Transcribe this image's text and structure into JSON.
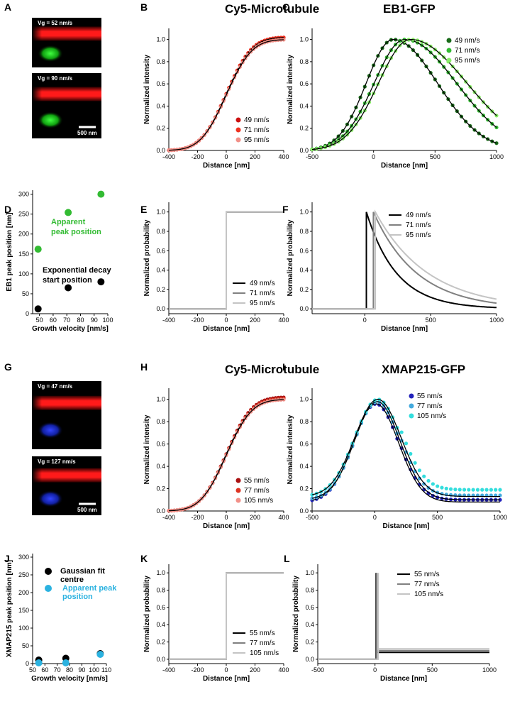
{
  "panels": [
    {
      "id": "A",
      "type": "image",
      "letter": "A",
      "images": [
        {
          "label": "Vg = 52 nm/s",
          "spot": "#22dd22"
        },
        {
          "label": "Vg = 90 nm/s",
          "spot": "#22dd22"
        }
      ],
      "scalebar": "500 nm"
    },
    {
      "id": "B",
      "type": "line",
      "letter": "B",
      "title": "Cy5-Microtubule",
      "xlabel": "Distance [nm]",
      "ylabel": "Normalized intensity",
      "xlim": [
        -400,
        400
      ],
      "ylim": [
        0,
        1.1
      ],
      "xticks": [
        -400,
        -200,
        0,
        200,
        400
      ],
      "yticks": [
        0,
        0.2,
        0.4,
        0.6,
        0.8,
        1.0
      ],
      "legend_pos": "bottom-right",
      "series": [
        {
          "name": "49 nm/s",
          "color": "#cc1111",
          "kind": "sigmoid",
          "sigma": 140,
          "amp": 1.02,
          "shift": 0
        },
        {
          "name": "71 nm/s",
          "color": "#ee3322",
          "kind": "sigmoid",
          "sigma": 140,
          "amp": 1.02,
          "shift": 0
        },
        {
          "name": "95 nm/s",
          "color": "#f29088",
          "kind": "sigmoid",
          "sigma": 140,
          "amp": 1.0,
          "shift": 0
        }
      ]
    },
    {
      "id": "C",
      "type": "line",
      "letter": "C",
      "title": "EB1-GFP",
      "xlabel": "Distance [nm]",
      "ylabel": "Normalized intensity",
      "xlim": [
        -500,
        1000
      ],
      "ylim": [
        0,
        1.1
      ],
      "xticks": [
        -500,
        0,
        500,
        1000
      ],
      "yticks": [
        0,
        0.2,
        0.4,
        0.6,
        0.8,
        1.0
      ],
      "legend_pos": "top-right",
      "series": [
        {
          "name": "49 nm/s",
          "color": "#1a6b1a",
          "kind": "skewpeak",
          "peak": 160,
          "sl": 220,
          "sr": 360
        },
        {
          "name": "71 nm/s",
          "color": "#33bb33",
          "kind": "skewpeak",
          "peak": 255,
          "sl": 250,
          "sr": 420
        },
        {
          "name": "95 nm/s",
          "color": "#88ee66",
          "kind": "skewpeak",
          "peak": 300,
          "sl": 260,
          "sr": 460
        }
      ]
    },
    {
      "id": "D",
      "type": "scatter",
      "letter": "D",
      "xlabel": "Growth velocity [nm/s]",
      "ylabel": "EB1 peak position [nm]",
      "xlim": [
        45,
        100
      ],
      "ylim": [
        0,
        310
      ],
      "xticks": [
        50,
        60,
        70,
        80,
        90,
        100
      ],
      "yticks": [
        0,
        50,
        100,
        150,
        200,
        250,
        300
      ],
      "series": [
        {
          "name": "Apparent peak position",
          "color": "#33bb33",
          "x": [
            49,
            71,
            95
          ],
          "y": [
            162,
            254,
            300
          ]
        },
        {
          "name": "Exponential decay start position",
          "color": "#000000",
          "x": [
            49,
            71,
            95
          ],
          "y": [
            12,
            65,
            80
          ]
        }
      ],
      "annotations": [
        {
          "text": "Apparent",
          "color": "#33bb33"
        },
        {
          "text": "peak position",
          "color": "#33bb33"
        },
        {
          "text": "Exponential decay",
          "color": "#000000"
        },
        {
          "text": "start position",
          "color": "#000000"
        }
      ]
    },
    {
      "id": "E",
      "type": "line",
      "letter": "E",
      "xlabel": "Distance [nm]",
      "ylabel": "Normalized probability",
      "xlim": [
        -400,
        400
      ],
      "ylim": [
        -0.05,
        1.1
      ],
      "xticks": [
        -400,
        -200,
        0,
        200,
        400
      ],
      "yticks": [
        0,
        0.2,
        0.4,
        0.6,
        0.8,
        1.0
      ],
      "legend_pos": "bottom-right",
      "series": [
        {
          "name": "49 nm/s",
          "color": "#000000",
          "kind": "step",
          "at": 0
        },
        {
          "name": "71 nm/s",
          "color": "#808080",
          "kind": "step",
          "at": 0
        },
        {
          "name": "95 nm/s",
          "color": "#c4c4c4",
          "kind": "step",
          "at": 0
        }
      ]
    },
    {
      "id": "F",
      "type": "line",
      "letter": "F",
      "xlabel": "Distance [nm]",
      "ylabel": "Normalized probability",
      "xlim": [
        -400,
        1000
      ],
      "ylim": [
        -0.05,
        1.1
      ],
      "xticks": [
        0,
        500,
        1000
      ],
      "yticks": [
        0,
        0.2,
        0.4,
        0.6,
        0.8,
        1.0
      ],
      "legend_pos": "top-right",
      "series": [
        {
          "name": "49 nm/s",
          "color": "#000000",
          "kind": "expdecay",
          "start": 12,
          "tau": 230
        },
        {
          "name": "71 nm/s",
          "color": "#808080",
          "kind": "expdecay",
          "start": 65,
          "tau": 330
        },
        {
          "name": "95 nm/s",
          "color": "#c4c4c4",
          "kind": "expdecay",
          "start": 80,
          "tau": 400
        }
      ]
    },
    {
      "id": "G",
      "type": "image",
      "letter": "G",
      "images": [
        {
          "label": "Vg = 47 nm/s",
          "spot": "#2233ee"
        },
        {
          "label": "Vg = 127 nm/s",
          "spot": "#2233ee"
        }
      ],
      "scalebar": "500 nm"
    },
    {
      "id": "H",
      "type": "line",
      "letter": "H",
      "title": "Cy5-Microtubule",
      "xlabel": "Distance [nm]",
      "ylabel": "Normalized intensity",
      "xlim": [
        -400,
        400
      ],
      "ylim": [
        0,
        1.1
      ],
      "xticks": [
        -400,
        -200,
        0,
        200,
        400
      ],
      "yticks": [
        0,
        0.2,
        0.4,
        0.6,
        0.8,
        1.0
      ],
      "legend_pos": "bottom-right",
      "series": [
        {
          "name": "55 nm/s",
          "color": "#aa1111",
          "kind": "sigmoid",
          "sigma": 140,
          "amp": 1.02,
          "shift": 0
        },
        {
          "name": "77 nm/s",
          "color": "#dd3322",
          "kind": "sigmoid",
          "sigma": 140,
          "amp": 1.01,
          "shift": 0
        },
        {
          "name": "105 nm/s",
          "color": "#f29088",
          "kind": "sigmoid",
          "sigma": 140,
          "amp": 1.0,
          "shift": 0
        }
      ]
    },
    {
      "id": "I",
      "type": "line",
      "letter": "I",
      "title": "XMAP215-GFP",
      "xlabel": "Distance [nm]",
      "ylabel": "Normalized intensity",
      "xlim": [
        -500,
        1000
      ],
      "ylim": [
        0,
        1.1
      ],
      "xticks": [
        -500,
        0,
        500,
        1000
      ],
      "yticks": [
        0,
        0.2,
        0.4,
        0.6,
        0.8,
        1.0
      ],
      "legend_pos": "top-left",
      "series": [
        {
          "name": "55 nm/s",
          "color": "#2222bb",
          "kind": "gausspeak",
          "peak": 10,
          "sigma": 180,
          "amp": 0.96,
          "base": 0.08
        },
        {
          "name": "77 nm/s",
          "color": "#44aadd",
          "kind": "gausspeak",
          "peak": 20,
          "sigma": 180,
          "amp": 0.98,
          "base": 0.1
        },
        {
          "name": "105 nm/s",
          "color": "#33dddd",
          "kind": "gausspeak",
          "peak": 25,
          "sigma": 185,
          "amp": 1.0,
          "base": 0.13
        }
      ]
    },
    {
      "id": "J",
      "type": "scatter",
      "letter": "J",
      "xlabel": "Growth velocity [nm/s]",
      "ylabel": "XMAP215 peak position [nm]",
      "xlim": [
        50,
        110
      ],
      "ylim": [
        0,
        310
      ],
      "xticks": [
        50,
        60,
        70,
        80,
        90,
        100,
        110
      ],
      "yticks": [
        0,
        50,
        100,
        150,
        200,
        250,
        300
      ],
      "series": [
        {
          "name": "Gaussian fit centre",
          "color": "#000000",
          "x": [
            55,
            77,
            105
          ],
          "y": [
            10,
            15,
            28
          ]
        },
        {
          "name": "Apparent peak position",
          "color": "#2bb2e0",
          "x": [
            55,
            77,
            105
          ],
          "y": [
            2,
            2,
            26
          ]
        }
      ],
      "annotations": [
        {
          "text": "Gaussian fit",
          "color": "#000000"
        },
        {
          "text": "centre",
          "color": "#000000"
        },
        {
          "text": "Apparent peak",
          "color": "#2bb2e0"
        },
        {
          "text": "position",
          "color": "#2bb2e0"
        }
      ]
    },
    {
      "id": "K",
      "type": "line",
      "letter": "K",
      "xlabel": "Distance [nm]",
      "ylabel": "Normalized probability",
      "xlim": [
        -400,
        400
      ],
      "ylim": [
        -0.05,
        1.1
      ],
      "xticks": [
        -400,
        -200,
        0,
        200,
        400
      ],
      "yticks": [
        0,
        0.2,
        0.4,
        0.6,
        0.8,
        1.0
      ],
      "legend_pos": "bottom-right",
      "series": [
        {
          "name": "55 nm/s",
          "color": "#000000",
          "kind": "step",
          "at": 0
        },
        {
          "name": "77 nm/s",
          "color": "#808080",
          "kind": "step",
          "at": 0
        },
        {
          "name": "105 nm/s",
          "color": "#c4c4c4",
          "kind": "step",
          "at": 0
        }
      ]
    },
    {
      "id": "L",
      "type": "line",
      "letter": "L",
      "xlabel": "Distance [nm]",
      "ylabel": "Normalized probability",
      "xlim": [
        -500,
        1000
      ],
      "ylim": [
        -0.05,
        1.1
      ],
      "xticks": [
        -500,
        0,
        500,
        1000
      ],
      "yticks": [
        0,
        0.2,
        0.4,
        0.6,
        0.8,
        1.0
      ],
      "legend_pos": "top-right",
      "series": [
        {
          "name": "55 nm/s",
          "color": "#000000",
          "kind": "spike",
          "at": 10,
          "base": 0.08
        },
        {
          "name": "77 nm/s",
          "color": "#808080",
          "kind": "spike",
          "at": 15,
          "base": 0.1
        },
        {
          "name": "105 nm/s",
          "color": "#c4c4c4",
          "kind": "spike",
          "at": 28,
          "base": 0.12
        }
      ]
    }
  ],
  "chart_data": [
    {
      "panel": "B",
      "type": "line",
      "title": "Cy5-Microtubule",
      "xlabel": "Distance [nm]",
      "ylabel": "Normalized intensity",
      "xlim": [
        -400,
        400
      ],
      "ylim": [
        0,
        1.1
      ],
      "series": [
        {
          "name": "49 nm/s"
        },
        {
          "name": "71 nm/s"
        },
        {
          "name": "95 nm/s"
        }
      ]
    },
    {
      "panel": "C",
      "type": "line",
      "title": "EB1-GFP",
      "xlabel": "Distance [nm]",
      "ylabel": "Normalized intensity",
      "xlim": [
        -500,
        1000
      ],
      "ylim": [
        0,
        1.1
      ],
      "series": [
        {
          "name": "49 nm/s",
          "peak": 160
        },
        {
          "name": "71 nm/s",
          "peak": 255
        },
        {
          "name": "95 nm/s",
          "peak": 300
        }
      ]
    },
    {
      "panel": "D",
      "type": "scatter",
      "xlabel": "Growth velocity [nm/s]",
      "ylabel": "EB1 peak position [nm]",
      "series": [
        {
          "name": "Apparent peak position",
          "x": [
            49,
            71,
            95
          ],
          "y": [
            162,
            254,
            300
          ]
        },
        {
          "name": "Exponential decay start position",
          "x": [
            49,
            71,
            95
          ],
          "y": [
            12,
            65,
            80
          ]
        }
      ]
    },
    {
      "panel": "E",
      "type": "line",
      "xlabel": "Distance [nm]",
      "ylabel": "Normalized probability",
      "xlim": [
        -400,
        400
      ],
      "series": [
        {
          "name": "49 nm/s"
        },
        {
          "name": "71 nm/s"
        },
        {
          "name": "95 nm/s"
        }
      ]
    },
    {
      "panel": "F",
      "type": "line",
      "xlabel": "Distance [nm]",
      "ylabel": "Normalized probability",
      "series": [
        {
          "name": "49 nm/s"
        },
        {
          "name": "71 nm/s"
        },
        {
          "name": "95 nm/s"
        }
      ]
    },
    {
      "panel": "H",
      "type": "line",
      "title": "Cy5-Microtubule",
      "xlabel": "Distance [nm]",
      "ylabel": "Normalized intensity",
      "series": [
        {
          "name": "55 nm/s"
        },
        {
          "name": "77 nm/s"
        },
        {
          "name": "105 nm/s"
        }
      ]
    },
    {
      "panel": "I",
      "type": "line",
      "title": "XMAP215-GFP",
      "xlabel": "Distance [nm]",
      "ylabel": "Normalized intensity",
      "series": [
        {
          "name": "55 nm/s"
        },
        {
          "name": "77 nm/s"
        },
        {
          "name": "105 nm/s"
        }
      ]
    },
    {
      "panel": "J",
      "type": "scatter",
      "xlabel": "Growth velocity [nm/s]",
      "ylabel": "XMAP215 peak position [nm]",
      "series": [
        {
          "name": "Gaussian fit centre",
          "x": [
            55,
            77,
            105
          ],
          "y": [
            10,
            15,
            28
          ]
        },
        {
          "name": "Apparent peak position",
          "x": [
            55,
            77,
            105
          ],
          "y": [
            2,
            2,
            26
          ]
        }
      ]
    },
    {
      "panel": "K",
      "type": "line",
      "xlabel": "Distance [nm]",
      "ylabel": "Normalized probability",
      "series": [
        {
          "name": "55 nm/s"
        },
        {
          "name": "77 nm/s"
        },
        {
          "name": "105 nm/s"
        }
      ]
    },
    {
      "panel": "L",
      "type": "line",
      "xlabel": "Distance [nm]",
      "ylabel": "Normalized probability",
      "series": [
        {
          "name": "55 nm/s"
        },
        {
          "name": "77 nm/s"
        },
        {
          "name": "105 nm/s"
        }
      ]
    }
  ]
}
